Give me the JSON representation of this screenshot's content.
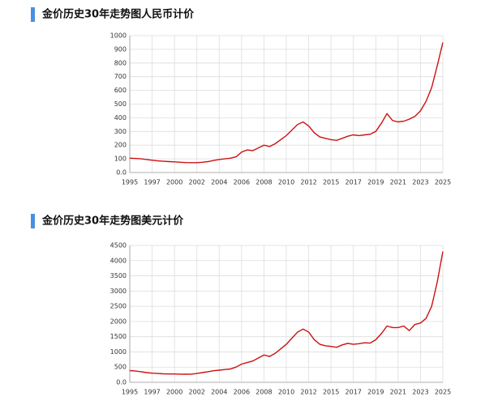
{
  "chart_data": [
    {
      "type": "line",
      "title": "金价历史30年走势图人民币计价",
      "color": "#cc1111",
      "grid": true,
      "categories": [
        "1995",
        null,
        null,
        null,
        "1997",
        null,
        null,
        null,
        "2000",
        null,
        null,
        null,
        "2002",
        null,
        null,
        null,
        "2004",
        null,
        null,
        null,
        "2006",
        null,
        null,
        null,
        "2008",
        null,
        null,
        null,
        "2010",
        null,
        null,
        null,
        "2012",
        null,
        null,
        null,
        "2015",
        null,
        null,
        null,
        "2017",
        null,
        null,
        null,
        "2019",
        null,
        null,
        null,
        "2021",
        null,
        null,
        null,
        "2023",
        null,
        null,
        null,
        "2025"
      ],
      "values": [
        105,
        103,
        100,
        95,
        90,
        85,
        82,
        80,
        78,
        75,
        73,
        72,
        72,
        75,
        80,
        88,
        95,
        100,
        105,
        115,
        150,
        165,
        160,
        180,
        200,
        190,
        210,
        240,
        270,
        310,
        350,
        370,
        340,
        290,
        260,
        250,
        240,
        235,
        250,
        265,
        275,
        270,
        275,
        280,
        300,
        360,
        430,
        380,
        370,
        375,
        390,
        410,
        450,
        520,
        620,
        780,
        950
      ],
      "ylim": [
        0,
        1000
      ],
      "yticks": [
        {
          "value": 0,
          "label": "0.0"
        },
        100,
        200,
        300,
        400,
        500,
        600,
        700,
        800,
        900,
        1000
      ]
    },
    {
      "type": "line",
      "title": "金价历史30年走势图美元计价",
      "color": "#cc1111",
      "grid": true,
      "categories": [
        "1995",
        null,
        null,
        null,
        "1997",
        null,
        null,
        null,
        "2000",
        null,
        null,
        null,
        "2002",
        null,
        null,
        null,
        "2004",
        null,
        null,
        null,
        "2006",
        null,
        null,
        null,
        "2008",
        null,
        null,
        null,
        "2010",
        null,
        null,
        null,
        "2012",
        null,
        null,
        null,
        "2015",
        null,
        null,
        null,
        "2017",
        null,
        null,
        null,
        "2019",
        null,
        null,
        null,
        "2021",
        null,
        null,
        null,
        "2023",
        null,
        null,
        null,
        "2025"
      ],
      "values": [
        385,
        370,
        350,
        320,
        300,
        290,
        280,
        275,
        275,
        270,
        265,
        270,
        290,
        320,
        350,
        380,
        400,
        420,
        440,
        500,
        600,
        650,
        700,
        800,
        900,
        850,
        950,
        1100,
        1250,
        1450,
        1650,
        1750,
        1650,
        1400,
        1250,
        1200,
        1180,
        1150,
        1230,
        1280,
        1250,
        1270,
        1300,
        1290,
        1400,
        1600,
        1850,
        1800,
        1800,
        1850,
        1700,
        1900,
        1950,
        2100,
        2500,
        3300,
        4300
      ],
      "ylim": [
        0,
        4500
      ],
      "yticks": [
        {
          "value": 0,
          "label": "0.0"
        },
        500,
        1000,
        1500,
        2000,
        2500,
        3000,
        3500,
        4000,
        4500
      ]
    }
  ]
}
